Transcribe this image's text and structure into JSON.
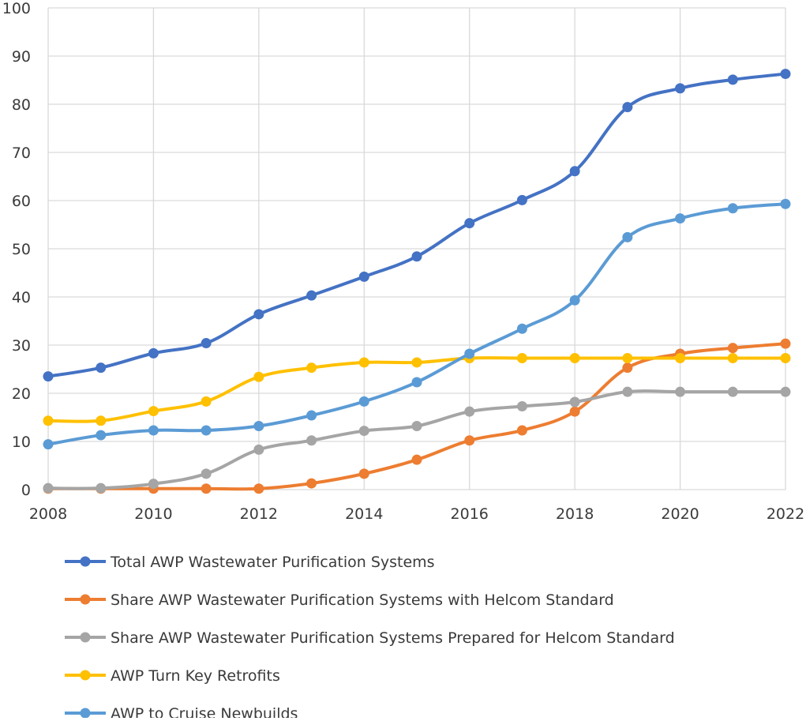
{
  "chart_data": {
    "type": "line",
    "title": "",
    "xlabel": "",
    "ylabel": "",
    "x": [
      2008,
      2009,
      2010,
      2011,
      2012,
      2013,
      2014,
      2015,
      2016,
      2017,
      2018,
      2019,
      2020,
      2021,
      2022
    ],
    "xlim": [
      2008,
      2022
    ],
    "ylim": [
      0,
      100
    ],
    "x_ticks": [
      "2008",
      "2010",
      "2012",
      "2014",
      "2016",
      "2018",
      "2020",
      "2022"
    ],
    "y_ticks": [
      "0",
      "10",
      "20",
      "30",
      "40",
      "50",
      "60",
      "70",
      "80",
      "90",
      "100"
    ],
    "grid": true,
    "legend_position": "bottom",
    "series": [
      {
        "name": "Total AWP Wastewater Purification  Systems",
        "color": "#4472c4",
        "values": [
          23.5,
          25.3,
          28.3,
          30.4,
          36.4,
          40.3,
          44.2,
          48.4,
          55.3,
          60.1,
          66.1,
          79.4,
          83.3,
          85.1,
          86.3
        ]
      },
      {
        "name": "Share AWP Wastewater Purification  Systems with Helcom  Standard",
        "color": "#ed7d31",
        "values": [
          0.2,
          0.2,
          0.2,
          0.2,
          0.2,
          1.3,
          3.3,
          6.2,
          10.2,
          12.3,
          16.2,
          25.3,
          28.2,
          29.4,
          30.3
        ]
      },
      {
        "name": "Share AWP Wastewater Purification  Systems Prepared  for  Helcom  Standard",
        "color": "#a5a5a5",
        "values": [
          0.3,
          0.3,
          1.2,
          3.3,
          8.3,
          10.2,
          12.2,
          13.2,
          16.2,
          17.3,
          18.2,
          20.3,
          20.3,
          20.3,
          20.3
        ]
      },
      {
        "name": "AWP Turn Key Retrofits",
        "color": "#ffc000",
        "values": [
          14.3,
          14.3,
          16.3,
          18.3,
          23.4,
          25.3,
          26.4,
          26.4,
          27.3,
          27.3,
          27.3,
          27.3,
          27.3,
          27.3,
          27.3
        ]
      },
      {
        "name": "AWP to Cruise  Newbuilds",
        "color": "#5b9bd5",
        "values": [
          9.4,
          11.3,
          12.3,
          12.3,
          13.2,
          15.4,
          18.3,
          22.3,
          28.2,
          33.4,
          39.3,
          52.4,
          56.3,
          58.4,
          59.3
        ]
      }
    ]
  }
}
